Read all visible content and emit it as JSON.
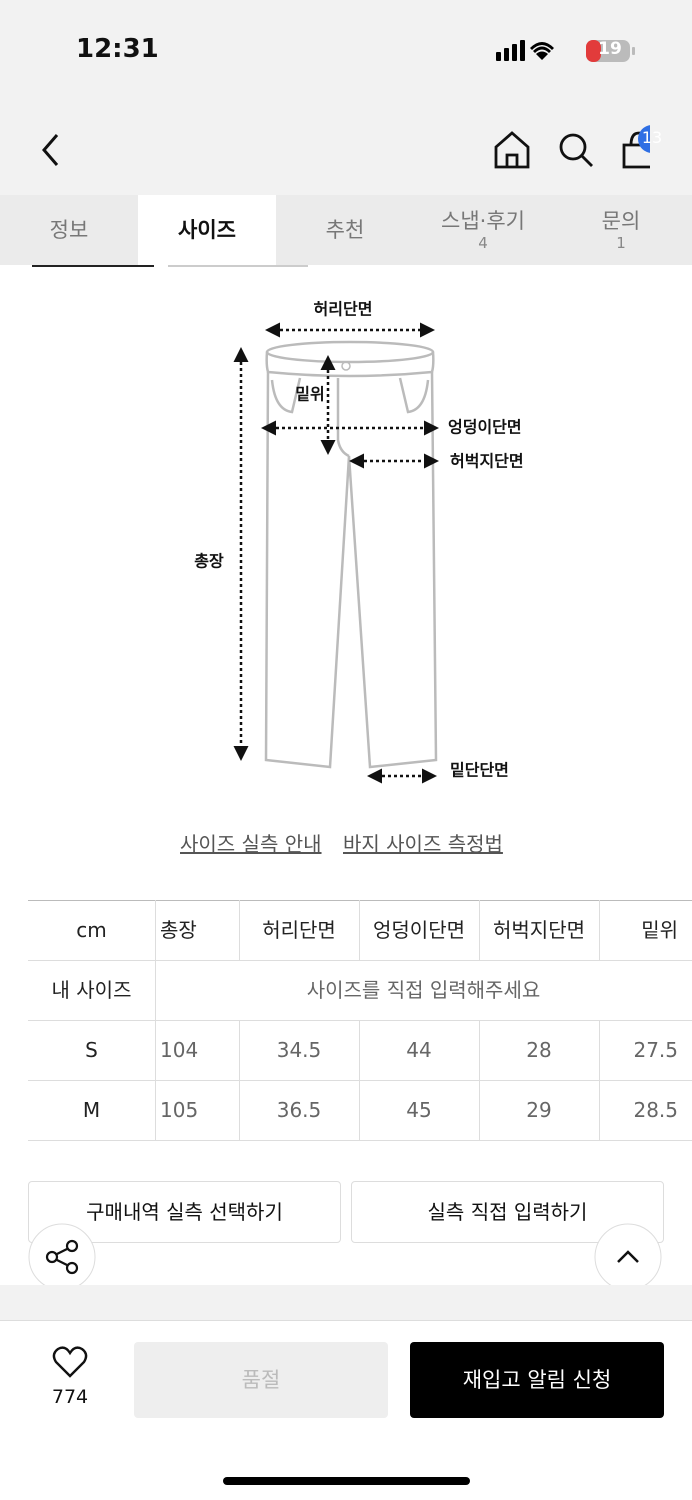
{
  "status": {
    "time": "12:31",
    "battery": "19"
  },
  "nav": {
    "cart_count": "13"
  },
  "tabs": [
    {
      "label": "정보"
    },
    {
      "label": "사이즈"
    },
    {
      "label": "추천"
    },
    {
      "label": "스냅·후기",
      "count": "4"
    },
    {
      "label": "문의",
      "count": "1"
    }
  ],
  "diagram": {
    "waist": "허리단면",
    "rise": "밑위",
    "hip": "엉덩이단면",
    "thigh": "허벅지단면",
    "length": "총장",
    "hem": "밑단단면"
  },
  "links": [
    "사이즈 실측 안내",
    "바지 사이즈 측정법"
  ],
  "table": {
    "header": [
      "cm",
      "총장",
      "허리단면",
      "엉덩이단면",
      "허벅지단면",
      "밑위"
    ],
    "my_size": {
      "label": "내 사이즈",
      "placeholder": "사이즈를 직접 입력해주세요"
    },
    "rows": [
      [
        "S",
        104,
        34.5,
        44,
        28,
        27.5
      ],
      [
        "M",
        105,
        36.5,
        45,
        29,
        28.5
      ]
    ]
  },
  "buttons": {
    "history": "구매내역 실측 선택하기",
    "manual": "실측 직접 입력하기"
  },
  "footer": {
    "likes": "774",
    "sold_out": "품절",
    "restock": "재입고 알림 신청"
  }
}
